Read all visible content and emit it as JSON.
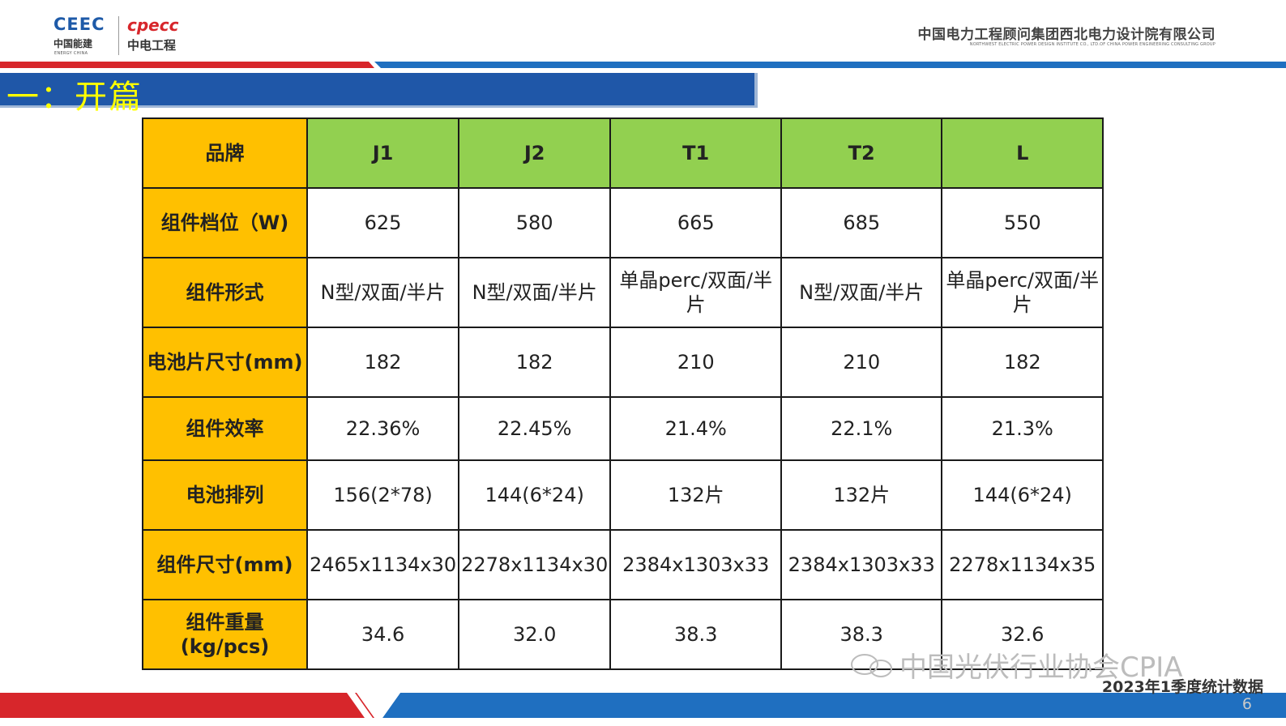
{
  "header": {
    "logo_ceec": "CEEC",
    "logo_ceec_cn": "中国能建",
    "logo_ceec_en": "ENERGY CHINA",
    "logo_cpecc": "cpecc",
    "logo_cpecc_cn": "中电工程",
    "company_cn": "中国电力工程顾问集团西北电力设计院有限公司",
    "company_en": "NORTHWEST ELECTRIC POWER DESIGN INSTITUTE CO., LTD.OF CHINA POWER ENGINEERING CONSULTING GROUP"
  },
  "section": {
    "title": "一：开篇"
  },
  "table": {
    "corner": "品牌",
    "brands": [
      "J1",
      "J2",
      "T1",
      "T2",
      "L"
    ],
    "rows": [
      {
        "label": "组件档位（W)",
        "values": [
          "625",
          "580",
          "665",
          "685",
          "550"
        ]
      },
      {
        "label": "组件形式",
        "values": [
          "N型/双面/半片",
          "N型/双面/半片",
          "单晶perc/双面/半片",
          "N型/双面/半片",
          "单晶perc/双面/半片"
        ]
      },
      {
        "label": "电池片尺寸(mm)",
        "values": [
          "182",
          "182",
          "210",
          "210",
          "182"
        ]
      },
      {
        "label": "组件效率",
        "values": [
          "22.36%",
          "22.45%",
          "21.4%",
          "22.1%",
          "21.3%"
        ]
      },
      {
        "label": "电池排列",
        "values": [
          "156(2*78)",
          "144(6*24)",
          "132片",
          "132片",
          "144(6*24)"
        ]
      },
      {
        "label": "组件尺寸(mm)",
        "values": [
          "2465x1134x30",
          "2278x1134x30",
          "2384x1303x33",
          "2384x1303x33",
          "2278x1134x35"
        ]
      },
      {
        "label": "组件重量(kg/pcs)",
        "values": [
          "34.6",
          "32.0",
          "38.3",
          "38.3",
          "32.6"
        ]
      }
    ]
  },
  "footer": {
    "watermark": "中国光伏行业协会CPIA",
    "stat_note": "2023年1季度统计数据",
    "page_number": "6"
  },
  "colors": {
    "header_green": "#92d050",
    "label_orange": "#ffc000",
    "banner_blue": "#1f57a8",
    "banner_text": "#ffff00",
    "brand_red": "#d7262b"
  }
}
